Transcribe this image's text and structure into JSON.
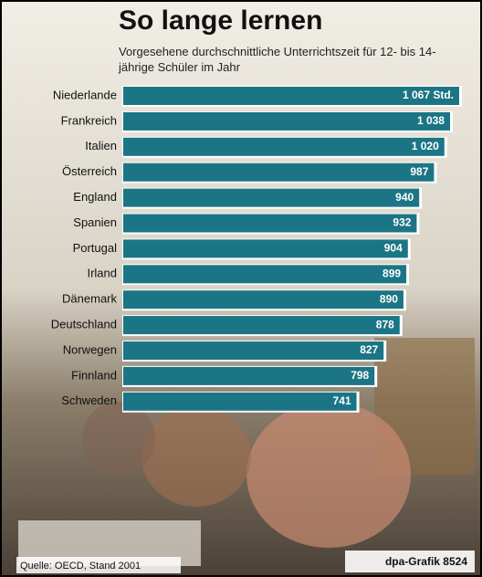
{
  "chart_data": {
    "type": "bar",
    "orientation": "horizontal",
    "title": "So lange lernen",
    "subtitle": "Vorgesehene durchschnittliche Unterrichtszeit für 12- bis 14-jährige Schüler im Jahr",
    "categories": [
      "Niederlande",
      "Frankreich",
      "Italien",
      "Österreich",
      "England",
      "Spanien",
      "Portugal",
      "Irland",
      "Dänemark",
      "Deutschland",
      "Norwegen",
      "Finnland",
      "Schweden"
    ],
    "values": [
      1067,
      1038,
      1020,
      987,
      940,
      932,
      904,
      899,
      890,
      878,
      827,
      798,
      741
    ],
    "value_labels": [
      "1 067 Std.",
      "1 038",
      "1 020",
      "987",
      "940",
      "932",
      "904",
      "899",
      "890",
      "878",
      "827",
      "798",
      "741"
    ],
    "color": "#1c7585",
    "source": "Quelle: OECD, Stand 2001",
    "credit": "dpa-Grafik 8524"
  }
}
